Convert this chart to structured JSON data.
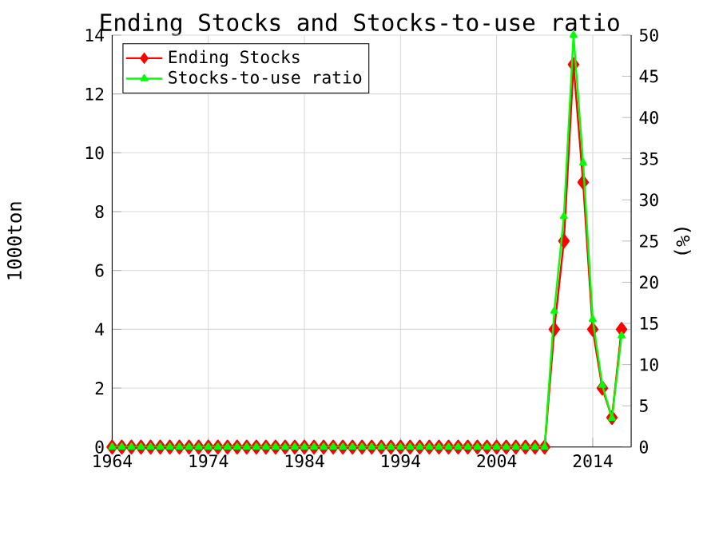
{
  "chart_data": {
    "type": "line",
    "title": "Ending Stocks and Stocks-to-use ratio",
    "ylabel": "1000ton",
    "y2label": "(%)",
    "x": [
      1964,
      1965,
      1966,
      1967,
      1968,
      1969,
      1970,
      1971,
      1972,
      1973,
      1974,
      1975,
      1976,
      1977,
      1978,
      1979,
      1980,
      1981,
      1982,
      1983,
      1984,
      1985,
      1986,
      1987,
      1988,
      1989,
      1990,
      1991,
      1992,
      1993,
      1994,
      1995,
      1996,
      1997,
      1998,
      1999,
      2000,
      2001,
      2002,
      2003,
      2004,
      2005,
      2006,
      2007,
      2008,
      2009,
      2010,
      2011,
      2012,
      2013,
      2014,
      2015,
      2016,
      2017
    ],
    "series": [
      {
        "name": "Ending Stocks",
        "color": "#ff0000",
        "marker": "diamond",
        "values": [
          0,
          0,
          0,
          0,
          0,
          0,
          0,
          0,
          0,
          0,
          0,
          0,
          0,
          0,
          0,
          0,
          0,
          0,
          0,
          0,
          0,
          0,
          0,
          0,
          0,
          0,
          0,
          0,
          0,
          0,
          0,
          0,
          0,
          0,
          0,
          0,
          0,
          0,
          0,
          0,
          0,
          0,
          0,
          0,
          0,
          0,
          4,
          7,
          13,
          9,
          4,
          2,
          1,
          4
        ]
      },
      {
        "name": "Stocks-to-use ratio",
        "color": "#00ff00",
        "marker": "triangle",
        "axis": "y2",
        "values": [
          0,
          0,
          0,
          0,
          0,
          0,
          0,
          0,
          0,
          0,
          0,
          0,
          0,
          0,
          0,
          0,
          0,
          0,
          0,
          0,
          0,
          0,
          0,
          0,
          0,
          0,
          0,
          0,
          0,
          0,
          0,
          0,
          0,
          0,
          0,
          0,
          0,
          0,
          0,
          0,
          0,
          0,
          0,
          0,
          0,
          0,
          16.5,
          28,
          50,
          34.5,
          15.5,
          7.5,
          3.5,
          13.5
        ]
      }
    ],
    "xlim": [
      1964,
      2018
    ],
    "xticks": [
      1964,
      1974,
      1984,
      1994,
      2004,
      2014
    ],
    "ylim": [
      0,
      14
    ],
    "yticks": [
      0,
      2,
      4,
      6,
      8,
      10,
      12,
      14
    ],
    "y2lim": [
      0,
      50
    ],
    "y2ticks": [
      0,
      5,
      10,
      15,
      20,
      25,
      30,
      35,
      40,
      45,
      50
    ],
    "grid": true,
    "legend": "top left"
  }
}
